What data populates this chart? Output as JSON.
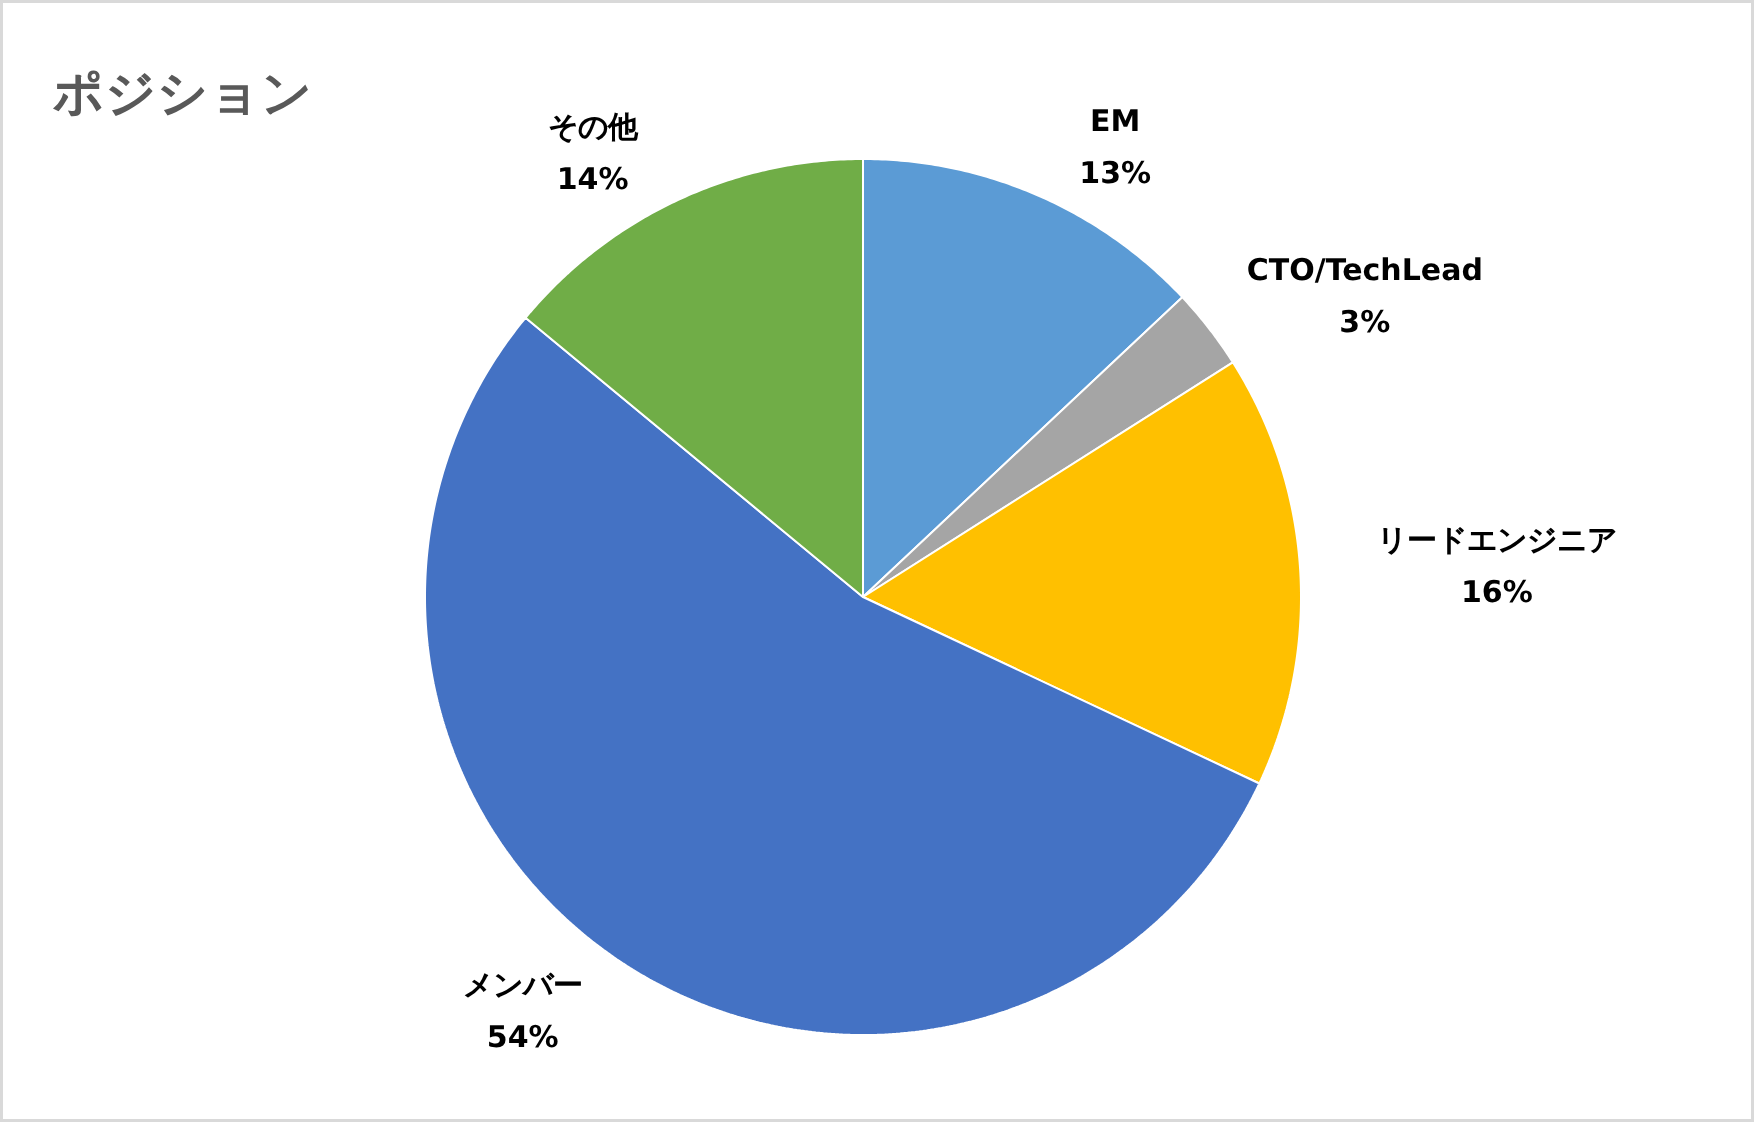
{
  "chart_data": {
    "type": "pie",
    "title": "ポジション",
    "categories": [
      "EM",
      "CTO/TechLead",
      "リードエンジニア",
      "メンバー",
      "その他"
    ],
    "values": [
      13,
      3,
      16,
      54,
      14
    ],
    "colors": [
      "#5b9bd5",
      "#a5a5a5",
      "#ffc000",
      "#4472c4",
      "#70ad47"
    ],
    "value_labels": [
      "13%",
      "3%",
      "16%",
      "54%",
      "14%"
    ]
  }
}
